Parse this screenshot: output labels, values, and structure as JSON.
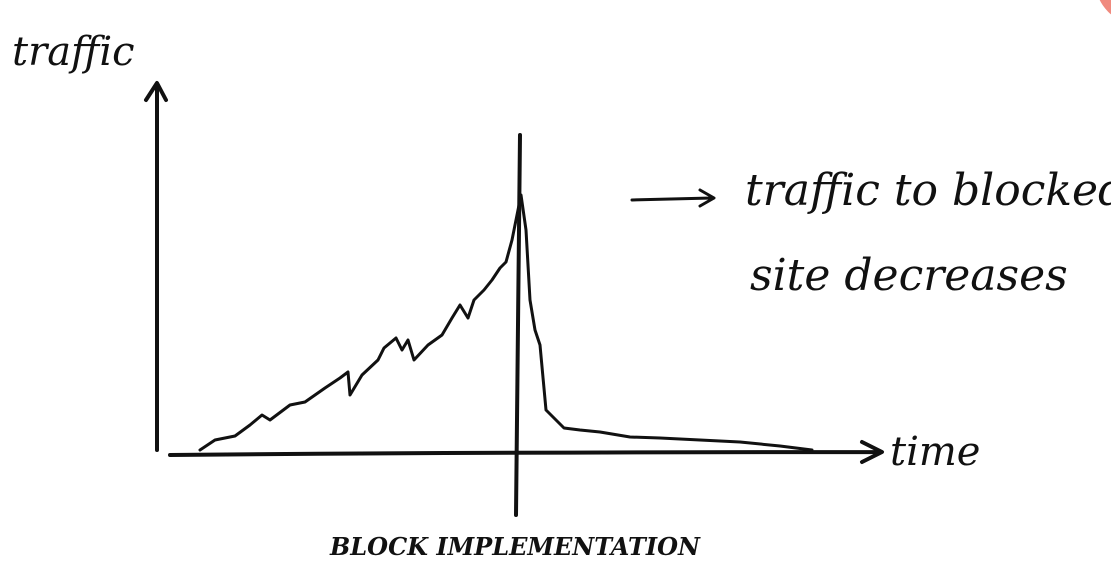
{
  "axes": {
    "y_label": "traffic",
    "x_label": "time"
  },
  "annotation": {
    "lines": [
      "traffic to blocked",
      "site decreases"
    ]
  },
  "marker": {
    "label": "BLOCK IMPLEMENTATION"
  }
}
